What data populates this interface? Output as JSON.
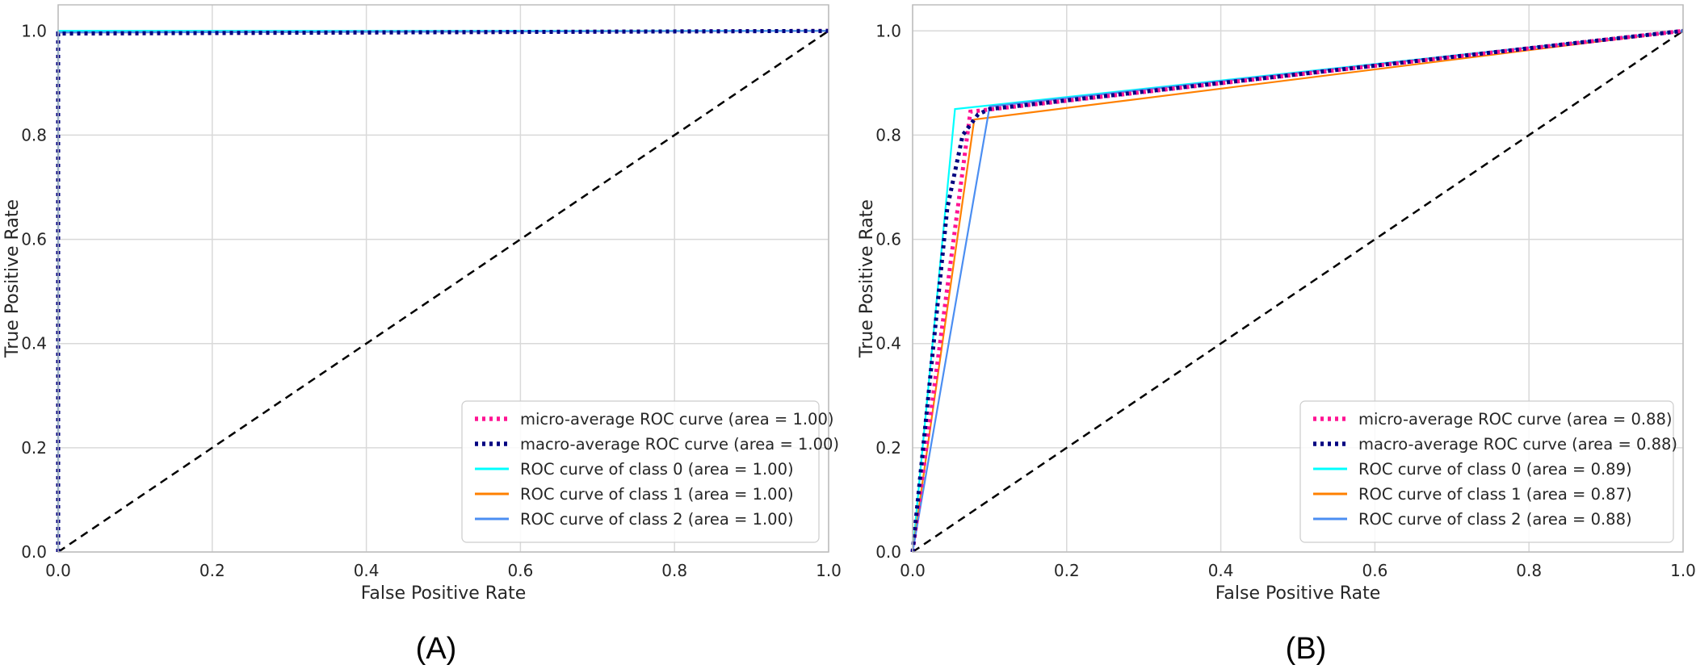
{
  "chart_data": [
    {
      "type": "line",
      "panel_label": "(A)",
      "xlabel": "False Positive Rate",
      "ylabel": "True Positive Rate",
      "xlim": [
        0.0,
        1.0
      ],
      "ylim": [
        0.0,
        1.05
      ],
      "xticks": [
        "0.0",
        "0.2",
        "0.4",
        "0.6",
        "0.8",
        "1.0"
      ],
      "yticks": [
        "0.0",
        "0.2",
        "0.4",
        "0.6",
        "0.8",
        "1.0"
      ],
      "grid": true,
      "legend_position": "lower-right",
      "series": [
        {
          "name": "micro-average ROC curve (area = 1.00)",
          "color": "#ff1493",
          "style": "dotted",
          "x": [
            0.0,
            0.0,
            0.005,
            1.0
          ],
          "y": [
            0.0,
            0.995,
            0.995,
            1.0
          ]
        },
        {
          "name": "macro-average ROC curve (area = 1.00)",
          "color": "#000080",
          "style": "dotted",
          "x": [
            0.0,
            0.0,
            0.005,
            1.0
          ],
          "y": [
            0.0,
            0.995,
            0.995,
            1.0
          ]
        },
        {
          "name": "ROC curve of class 0 (area = 1.00)",
          "color": "#00ffff",
          "style": "solid",
          "x": [
            0.0,
            0.0,
            1.0
          ],
          "y": [
            0.0,
            1.0,
            1.0
          ]
        },
        {
          "name": "ROC curve of class 1 (area = 1.00)",
          "color": "#ff8000",
          "style": "solid",
          "x": [
            0.0,
            0.0,
            1.0
          ],
          "y": [
            0.0,
            0.997,
            1.0
          ]
        },
        {
          "name": "ROC curve of class 2 (area = 1.00)",
          "color": "#4b8ef2",
          "style": "solid",
          "x": [
            0.0,
            0.0,
            1.0
          ],
          "y": [
            0.0,
            0.997,
            1.0
          ]
        }
      ],
      "reference_line": {
        "x": [
          0.0,
          1.0
        ],
        "y": [
          0.0,
          1.0
        ],
        "color": "#000000",
        "style": "dashed"
      }
    },
    {
      "type": "line",
      "panel_label": "(B)",
      "xlabel": "False Positive Rate",
      "ylabel": "True Positive Rate",
      "xlim": [
        0.0,
        1.0
      ],
      "ylim": [
        0.0,
        1.05
      ],
      "xticks": [
        "0.0",
        "0.2",
        "0.4",
        "0.6",
        "0.8",
        "1.0"
      ],
      "yticks": [
        "0.0",
        "0.2",
        "0.4",
        "0.6",
        "0.8",
        "1.0"
      ],
      "grid": true,
      "legend_position": "lower-right",
      "series": [
        {
          "name": "micro-average ROC curve (area = 0.88)",
          "color": "#ff1493",
          "style": "dotted",
          "x": [
            0.0,
            0.075,
            1.0
          ],
          "y": [
            0.0,
            0.845,
            1.0
          ]
        },
        {
          "name": "macro-average ROC curve (area = 0.88)",
          "color": "#000080",
          "style": "dotted",
          "x": [
            0.0,
            0.045,
            0.065,
            0.085,
            0.1,
            1.0
          ],
          "y": [
            0.0,
            0.66,
            0.8,
            0.84,
            0.85,
            1.0
          ]
        },
        {
          "name": "ROC curve of class 0 (area = 0.89)",
          "color": "#00ffff",
          "style": "solid",
          "x": [
            0.0,
            0.055,
            1.0
          ],
          "y": [
            0.0,
            0.85,
            1.0
          ]
        },
        {
          "name": "ROC curve of class 1 (area = 0.87)",
          "color": "#ff8000",
          "style": "solid",
          "x": [
            0.0,
            0.08,
            1.0
          ],
          "y": [
            0.0,
            0.83,
            1.0
          ]
        },
        {
          "name": "ROC curve of class 2 (area = 0.88)",
          "color": "#4b8ef2",
          "style": "solid",
          "x": [
            0.0,
            0.1,
            1.0
          ],
          "y": [
            0.0,
            0.855,
            1.0
          ]
        }
      ],
      "reference_line": {
        "x": [
          0.0,
          1.0
        ],
        "y": [
          0.0,
          1.0
        ],
        "color": "#000000",
        "style": "dashed"
      }
    }
  ]
}
